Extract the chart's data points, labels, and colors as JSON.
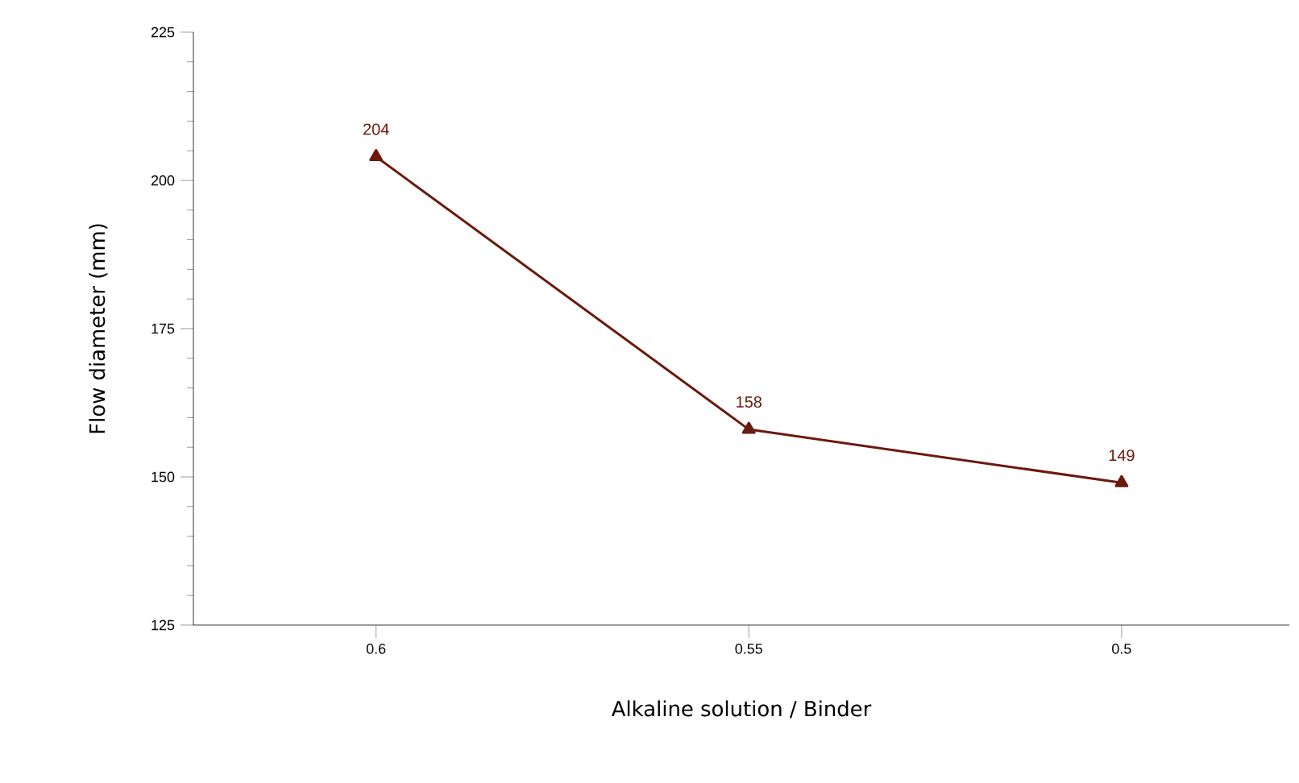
{
  "chart_data": {
    "type": "line",
    "xlabel": "Alkaline solution / Binder",
    "ylabel": "Flow diameter (mm)",
    "categories": [
      "0.6",
      "0.55",
      "0.5"
    ],
    "values": [
      204,
      158,
      149
    ],
    "color": "#6b1a0e",
    "marker": "triangle",
    "line_style": "solid",
    "data_labels": true,
    "grid": false,
    "ylim": [
      125,
      225
    ],
    "yticks": [
      125,
      150,
      175,
      200,
      225
    ]
  }
}
